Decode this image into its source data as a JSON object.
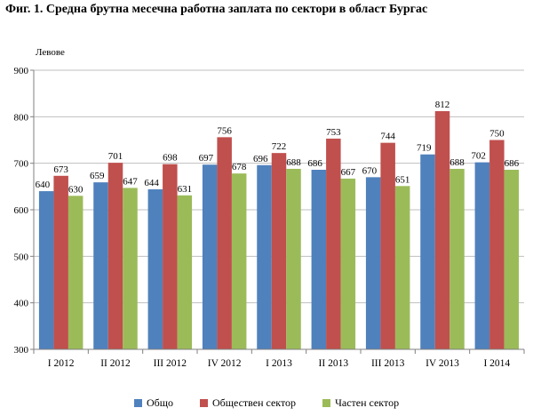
{
  "title": "Фиг. 1. Средна брутна месечна работна заплата по сектори в област Бургас",
  "chart_data": {
    "type": "bar",
    "ylabel": "Левове",
    "ylim": [
      300,
      900
    ],
    "yticks": [
      300,
      400,
      500,
      600,
      700,
      800,
      900
    ],
    "grid": true,
    "legend_position": "bottom",
    "categories": [
      "I 2012",
      "II 2012",
      "III 2012",
      "IV 2012",
      "I 2013",
      "II 2013",
      "III 2013",
      "IV 2013",
      "I 2014"
    ],
    "series": [
      {
        "name": "Общо",
        "color": "#4f81bd",
        "values": [
          640,
          659,
          644,
          697,
          696,
          686,
          670,
          719,
          702
        ]
      },
      {
        "name": "Обществен сектор",
        "color": "#c0504d",
        "values": [
          673,
          701,
          698,
          756,
          722,
          753,
          744,
          812,
          750
        ]
      },
      {
        "name": "Частен сектор",
        "color": "#9bbb59",
        "values": [
          630,
          647,
          631,
          678,
          688,
          667,
          651,
          688,
          686
        ]
      }
    ]
  }
}
